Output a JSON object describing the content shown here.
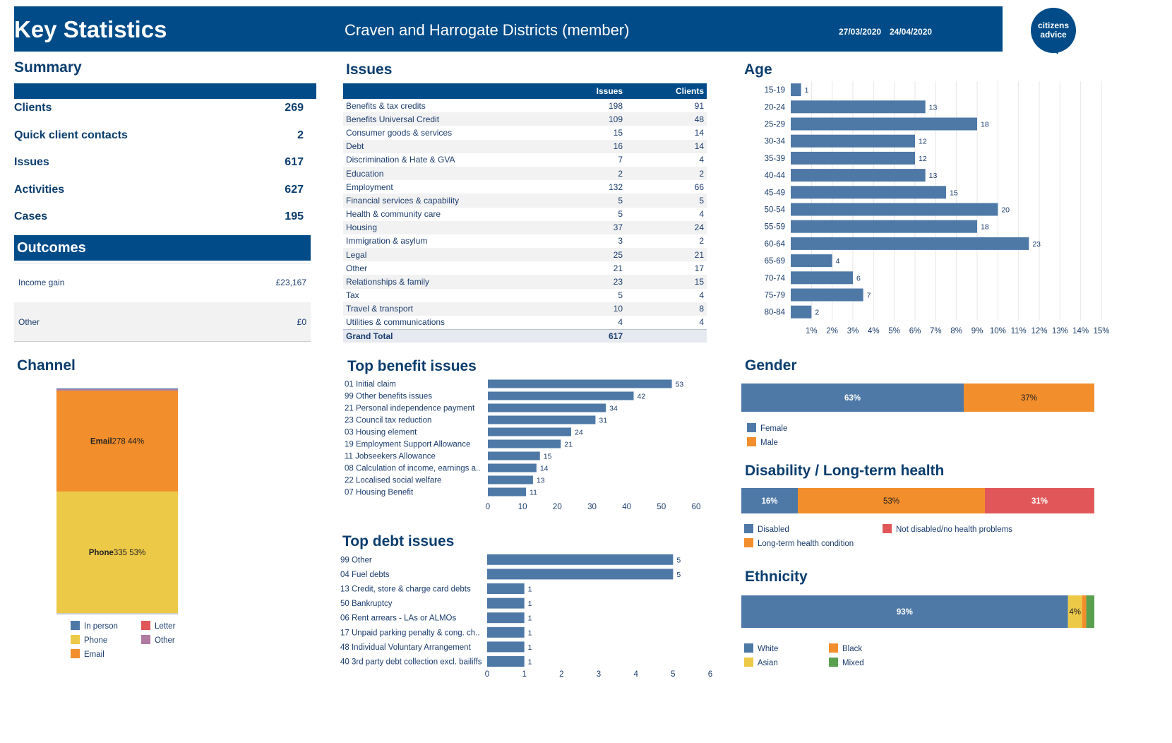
{
  "header": {
    "title": "Key Statistics",
    "district": "Craven and Harrogate Districts (member)",
    "date_from": "27/03/2020",
    "date_to": "24/04/2020",
    "logo_line1": "citizens",
    "logo_line2": "advice"
  },
  "summary": {
    "title": "Summary",
    "rows": [
      {
        "label": "Clients",
        "value": "269"
      },
      {
        "label": "Quick client contacts",
        "value": "2"
      },
      {
        "label": "Issues",
        "value": "617"
      },
      {
        "label": "Activities",
        "value": "627"
      },
      {
        "label": "Cases",
        "value": "195"
      }
    ]
  },
  "outcomes": {
    "title": "Outcomes",
    "rows": [
      {
        "label": "Income gain",
        "value": "£23,167"
      },
      {
        "label": "Other",
        "value": "£0"
      }
    ]
  },
  "issues": {
    "title": "Issues",
    "col_issues": "Issues",
    "col_clients": "Clients",
    "rows": [
      {
        "label": "Benefits & tax credits",
        "issues": "198",
        "clients": "91"
      },
      {
        "label": "Benefits Universal Credit",
        "issues": "109",
        "clients": "48"
      },
      {
        "label": "Consumer goods & services",
        "issues": "15",
        "clients": "14"
      },
      {
        "label": "Debt",
        "issues": "16",
        "clients": "14"
      },
      {
        "label": "Discrimination & Hate & GVA",
        "issues": "7",
        "clients": "4"
      },
      {
        "label": "Education",
        "issues": "2",
        "clients": "2"
      },
      {
        "label": "Employment",
        "issues": "132",
        "clients": "66"
      },
      {
        "label": "Financial services & capability",
        "issues": "5",
        "clients": "5"
      },
      {
        "label": "Health & community care",
        "issues": "5",
        "clients": "4"
      },
      {
        "label": "Housing",
        "issues": "37",
        "clients": "24"
      },
      {
        "label": "Immigration & asylum",
        "issues": "3",
        "clients": "2"
      },
      {
        "label": "Legal",
        "issues": "25",
        "clients": "21"
      },
      {
        "label": "Other",
        "issues": "21",
        "clients": "17"
      },
      {
        "label": "Relationships & family",
        "issues": "23",
        "clients": "15"
      },
      {
        "label": "Tax",
        "issues": "5",
        "clients": "4"
      },
      {
        "label": "Travel & transport",
        "issues": "10",
        "clients": "8"
      },
      {
        "label": "Utilities & communications",
        "issues": "4",
        "clients": "4"
      }
    ],
    "total_label": "Grand Total",
    "total_issues": "617"
  },
  "colors": {
    "navy": "#004b88",
    "bar_blue": "#4e79a7",
    "orange": "#f28e2b",
    "yellow": "#edc948",
    "red": "#e15759",
    "purple": "#b07aa1",
    "green": "#59a14f"
  },
  "chart_data": [
    {
      "id": "age",
      "type": "bar",
      "orientation": "horizontal",
      "title": "Age",
      "categories": [
        "15-19",
        "20-24",
        "25-29",
        "30-34",
        "35-39",
        "40-44",
        "45-49",
        "50-54",
        "55-59",
        "60-64",
        "65-69",
        "70-74",
        "75-79",
        "80-84"
      ],
      "values": [
        1,
        13,
        18,
        12,
        12,
        13,
        15,
        20,
        18,
        23,
        4,
        6,
        7,
        2
      ],
      "x_ticks": [
        "1%",
        "2%",
        "3%",
        "4%",
        "5%",
        "6%",
        "7%",
        "8%",
        "9%",
        "10%",
        "11%",
        "12%",
        "13%",
        "14%",
        "15%"
      ],
      "grid": true
    },
    {
      "id": "benefit",
      "type": "bar",
      "orientation": "horizontal",
      "title": "Top benefit issues",
      "categories": [
        "01 Initial claim",
        "99 Other benefits issues",
        "21 Personal independence payment",
        "23 Council tax reduction",
        "03 Housing element",
        "19 Employment Support Allowance",
        "11 Jobseekers Allowance",
        "08 Calculation of income, earnings a..",
        "22 Localised social welfare",
        "07 Housing Benefit"
      ],
      "values": [
        53,
        42,
        34,
        31,
        24,
        21,
        15,
        14,
        13,
        11
      ],
      "xlim": [
        0,
        60
      ],
      "x_ticks": [
        "0",
        "10",
        "20",
        "30",
        "40",
        "50",
        "60"
      ]
    },
    {
      "id": "debt",
      "type": "bar",
      "orientation": "horizontal",
      "title": "Top debt issues",
      "categories": [
        "99 Other",
        "04 Fuel debts",
        "13 Credit, store & charge card debts",
        "50 Bankruptcy",
        "06 Rent arrears - LAs or ALMOs",
        "17 Unpaid parking penalty & cong. ch..",
        "48 Individual Voluntary Arrangement",
        "40 3rd party debt collection excl. bailiffs"
      ],
      "values": [
        5,
        5,
        1,
        1,
        1,
        1,
        1,
        1
      ],
      "xlim": [
        0,
        6
      ],
      "x_ticks": [
        "0",
        "1",
        "2",
        "3",
        "4",
        "5",
        "6"
      ]
    },
    {
      "id": "channel",
      "type": "bar",
      "stacked": true,
      "title": "Channel",
      "segments": [
        {
          "name": "Phone",
          "value": 335,
          "pct": "53%",
          "label_bold": "Phone",
          "label_rest": "335 53%"
        },
        {
          "name": "Email",
          "value": 278,
          "pct": "44%",
          "label_bold": "Email",
          "label_rest": "278 44%"
        },
        {
          "name": "Other",
          "value": 4
        },
        {
          "name": "In person",
          "value": 2
        }
      ],
      "legend": [
        "In person",
        "Letter",
        "Phone",
        "Other",
        "Email"
      ]
    },
    {
      "id": "gender",
      "type": "bar",
      "stacked": true,
      "title": "Gender",
      "segments": [
        {
          "name": "Female",
          "value": 63,
          "label": "63%"
        },
        {
          "name": "Male",
          "value": 37,
          "label": "37%"
        }
      ],
      "legend": [
        "Female",
        "Male"
      ]
    },
    {
      "id": "disability",
      "type": "bar",
      "stacked": true,
      "title": "Disability / Long-term health",
      "segments": [
        {
          "name": "Disabled",
          "value": 16,
          "label": "16%"
        },
        {
          "name": "Long-term health condition",
          "value": 53,
          "label": "53%"
        },
        {
          "name": "Not disabled/no health problems",
          "value": 31,
          "label": "31%"
        }
      ],
      "legend": [
        "Disabled",
        "Not disabled/no health problems",
        "Long-term health condition"
      ]
    },
    {
      "id": "ethnicity",
      "type": "bar",
      "stacked": true,
      "title": "Ethnicity",
      "segments": [
        {
          "name": "White",
          "value": 93,
          "label": "93%"
        },
        {
          "name": "Asian",
          "value": 4,
          "label": "4%"
        },
        {
          "name": "Black",
          "value": 1.2
        },
        {
          "name": "Mixed",
          "value": 2.3
        }
      ],
      "legend": [
        "White",
        "Black",
        "Asian",
        "Mixed"
      ]
    }
  ]
}
